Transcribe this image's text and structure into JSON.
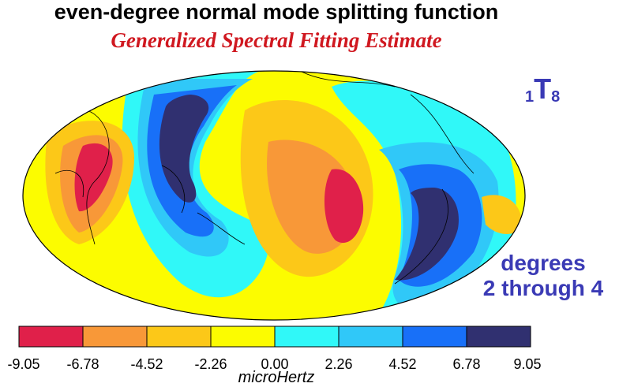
{
  "title": "even-degree normal mode splitting function",
  "subtitle": "Generalized Spectral Fitting Estimate",
  "mode_label": {
    "overtone": "1",
    "letter": "T",
    "degree": "8"
  },
  "degrees_label": {
    "line1": "degrees",
    "line2": "2 through 4"
  },
  "colorbar": {
    "unit": "microHertz",
    "ticks": [
      "-9.05",
      "-6.78",
      "-4.52",
      "-2.26",
      "0.00",
      "2.26",
      "4.52",
      "6.78",
      "9.05"
    ],
    "colors": [
      "#e0204a",
      "#f89838",
      "#fcc818",
      "#fcfc00",
      "#30f8f8",
      "#30c8f8",
      "#1870f8",
      "#303070"
    ]
  }
}
